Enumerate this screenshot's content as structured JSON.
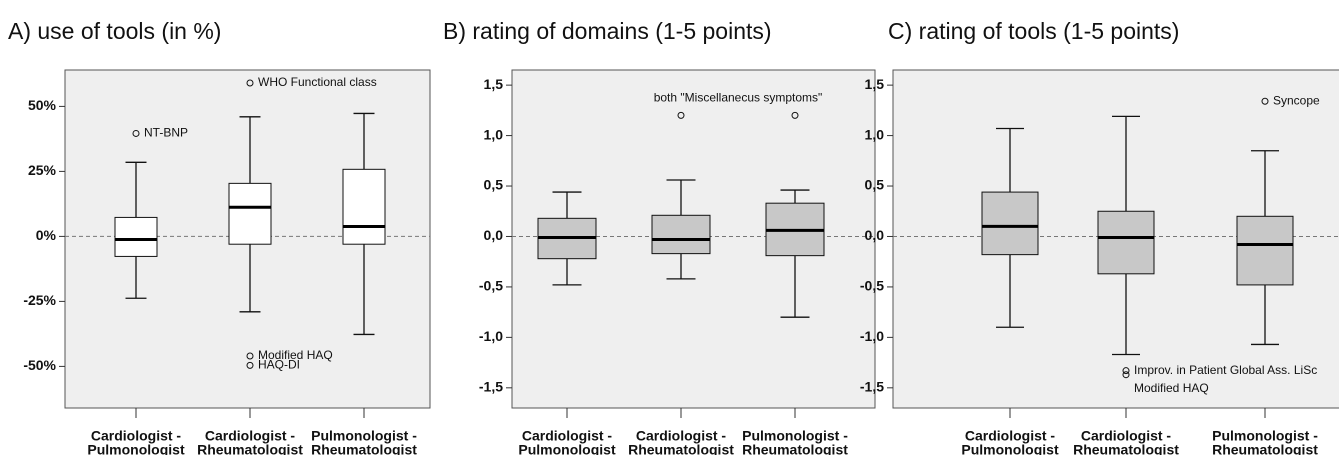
{
  "chart_data": [
    {
      "type": "box",
      "title": "A) use of tools (in %)",
      "categories": [
        [
          "Cardiologist -",
          "Pulmonologist"
        ],
        [
          "Cardiologist -",
          "Rheumatologist"
        ],
        [
          "Pulmonologist -",
          "Rheumatologist"
        ]
      ],
      "boxes": [
        {
          "whisker_low": -23.8,
          "q1": -7.7,
          "median": -1.2,
          "q3": 7.3,
          "whisker_high": 28.5,
          "outliers": [
            {
              "value": 39.6,
              "label": "NT-BNP"
            }
          ]
        },
        {
          "whisker_low": -29,
          "q1": -3,
          "median": 11.2,
          "q3": 20.4,
          "whisker_high": 46,
          "outliers": [
            {
              "value": 59,
              "label": "WHO Functional class"
            },
            {
              "value": -46,
              "label": "Modified HAQ"
            },
            {
              "value": -49.6,
              "label": "HAQ-DI"
            }
          ]
        },
        {
          "whisker_low": -37.7,
          "q1": -3,
          "median": 3.8,
          "q3": 25.8,
          "whisker_high": 47.3,
          "outliers": []
        }
      ],
      "box_color": "#ffffff",
      "reference_line": 0,
      "ylim": [
        -66,
        64
      ],
      "yticks": [
        {
          "value": -50,
          "label": "-50%"
        },
        {
          "value": -25,
          "label": "-25%"
        },
        {
          "value": 0,
          "label": "0%"
        },
        {
          "value": 25,
          "label": "25%"
        },
        {
          "value": 50,
          "label": "50%"
        }
      ]
    },
    {
      "type": "box",
      "title": "B) rating of domains (1-5 points)",
      "categories": [
        [
          "Cardiologist -",
          "Pulmonologist"
        ],
        [
          "Cardiologist -",
          "Rheumatologist"
        ],
        [
          "Pulmonologist -",
          "Rheumatologist"
        ]
      ],
      "boxes": [
        {
          "whisker_low": -0.48,
          "q1": -0.22,
          "median": -0.01,
          "q3": 0.18,
          "whisker_high": 0.44,
          "outliers": []
        },
        {
          "whisker_low": -0.42,
          "q1": -0.17,
          "median": -0.03,
          "q3": 0.21,
          "whisker_high": 0.56,
          "outliers": [
            {
              "value": 1.2
            }
          ]
        },
        {
          "whisker_low": -0.8,
          "q1": -0.19,
          "median": 0.06,
          "q3": 0.33,
          "whisker_high": 0.46,
          "outliers": [
            {
              "value": 1.2
            }
          ]
        }
      ],
      "annotation": "both \"Miscellanecus symptoms\"",
      "box_color": "#c8c8c8",
      "reference_line": 0,
      "ylim": [
        -1.7,
        1.65
      ],
      "yticks": [
        {
          "value": -1.5,
          "label": "-1,5"
        },
        {
          "value": -1,
          "label": "-1,0"
        },
        {
          "value": -0.5,
          "label": "-0,5"
        },
        {
          "value": 0,
          "label": "0,0"
        },
        {
          "value": 0.5,
          "label": "0,5"
        },
        {
          "value": 1,
          "label": "1,0"
        },
        {
          "value": 1.5,
          "label": "1,5"
        }
      ]
    },
    {
      "type": "box",
      "title": "C) rating of tools (1-5 points)",
      "categories": [
        [
          "Cardiologist -",
          "Pulmonologist"
        ],
        [
          "Cardiologist -",
          "Rheumatologist"
        ],
        [
          "Pulmonologist -",
          "Rheumatologist"
        ]
      ],
      "boxes": [
        {
          "whisker_low": -0.9,
          "q1": -0.18,
          "median": 0.1,
          "q3": 0.44,
          "whisker_high": 1.07,
          "outliers": []
        },
        {
          "whisker_low": -1.17,
          "q1": -0.37,
          "median": -0.01,
          "q3": 0.25,
          "whisker_high": 1.19,
          "outliers": [
            {
              "value": -1.33,
              "label": "Improv. in Patient Global Ass. LiSc"
            },
            {
              "value": -1.37,
              "label": "Modified HAQ"
            }
          ]
        },
        {
          "whisker_low": -1.07,
          "q1": -0.48,
          "median": -0.08,
          "q3": 0.2,
          "whisker_high": 0.85,
          "outliers": [
            {
              "value": 1.34,
              "label": "Syncope"
            }
          ]
        }
      ],
      "box_color": "#c8c8c8",
      "reference_line": 0,
      "ylim": [
        -1.7,
        1.65
      ],
      "yticks": [
        {
          "value": -1.5,
          "label": "-1,5"
        },
        {
          "value": -1,
          "label": "-1,0"
        },
        {
          "value": -0.5,
          "label": "-0,5"
        },
        {
          "value": 0,
          "label": "0,0"
        },
        {
          "value": 0.5,
          "label": "0,5"
        },
        {
          "value": 1,
          "label": "1,0"
        },
        {
          "value": 1.5,
          "label": "1,5"
        }
      ]
    }
  ]
}
